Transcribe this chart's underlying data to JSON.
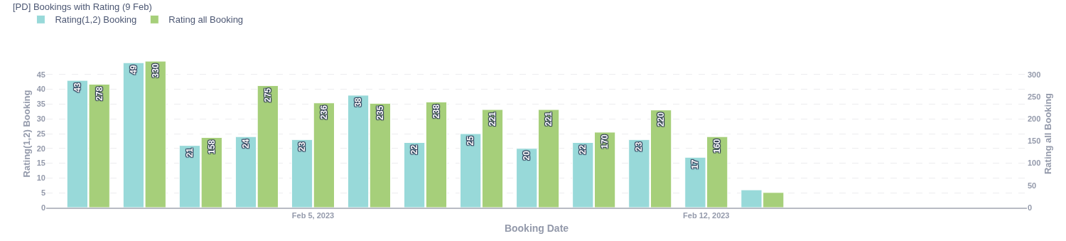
{
  "chart_data": {
    "type": "bar",
    "title": "[PD] Bookings with Rating (9 Feb)",
    "xlabel": "Booking Date",
    "ylabel": "Rating(1,2) Booking",
    "y2label": "Rating all Booking",
    "x": [
      "2023-02-01",
      "2023-02-02",
      "2023-02-03",
      "2023-02-04",
      "2023-02-05",
      "2023-02-06",
      "2023-02-07",
      "2023-02-08",
      "2023-02-09",
      "2023-02-10",
      "2023-02-11",
      "2023-02-12",
      "2023-02-13"
    ],
    "series": [
      {
        "name": "Rating(1,2) Booking",
        "color": "#98d9d9",
        "values": [
          43,
          49,
          21,
          24,
          23,
          38,
          22,
          25,
          20,
          22,
          23,
          17,
          6
        ],
        "value_labels": [
          "43",
          "49",
          "21",
          "24",
          "23",
          "38",
          "22",
          "25",
          "20",
          "22",
          "23",
          "17",
          null
        ]
      },
      {
        "name": "Rating all Booking",
        "color": "#a6cf7a",
        "axis": "y2",
        "values": [
          278,
          330,
          158,
          275,
          236,
          235,
          238,
          221,
          221,
          170,
          220,
          160,
          34
        ],
        "value_labels": [
          "278",
          "330",
          "158",
          "275",
          "236",
          "235",
          "238",
          "221",
          "221",
          "170",
          "220",
          "160",
          null
        ]
      }
    ],
    "xlim": [
      "2023-01-31T06:00",
      "2023-02-17T17:00"
    ],
    "xticks": [
      {
        "value": "2023-02-05",
        "label": "Feb 5, 2023"
      },
      {
        "value": "2023-02-12",
        "label": "Feb 12, 2023"
      }
    ],
    "ylim": [
      0,
      50
    ],
    "yticks": [
      0,
      5,
      10,
      15,
      20,
      25,
      30,
      35,
      40,
      45
    ],
    "y2lim": [
      0,
      333.3
    ],
    "y2ticks": [
      0,
      50,
      100,
      150,
      200,
      250,
      300
    ],
    "grid": "y",
    "legend": "top left"
  }
}
